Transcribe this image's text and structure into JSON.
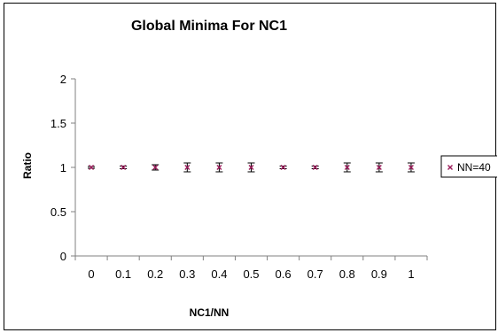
{
  "chart_data": {
    "type": "scatter",
    "title": "Global Minima For NC1",
    "xlabel": "NC1/NN",
    "ylabel": "Ratio",
    "categories": [
      "0",
      "0.1",
      "0.2",
      "0.3",
      "0.4",
      "0.5",
      "0.6",
      "0.7",
      "0.8",
      "0.9",
      "1"
    ],
    "ylim": [
      0,
      2
    ],
    "yticks": [
      "0",
      "0.5",
      "1",
      "1.5",
      "2"
    ],
    "grid": false,
    "legend_position": "right",
    "series": [
      {
        "name": "NN=40",
        "values": [
          1,
          1,
          1,
          1,
          1,
          1,
          1,
          1,
          1,
          1,
          1
        ],
        "error": [
          0.01,
          0.015,
          0.03,
          0.05,
          0.05,
          0.05,
          0.015,
          0.015,
          0.05,
          0.05,
          0.05
        ]
      }
    ]
  },
  "colors": {
    "marker": "#9b1b5a",
    "error_bar": "#000000",
    "axis": "#808080"
  },
  "icons": {
    "marker": "x-marker-icon"
  }
}
